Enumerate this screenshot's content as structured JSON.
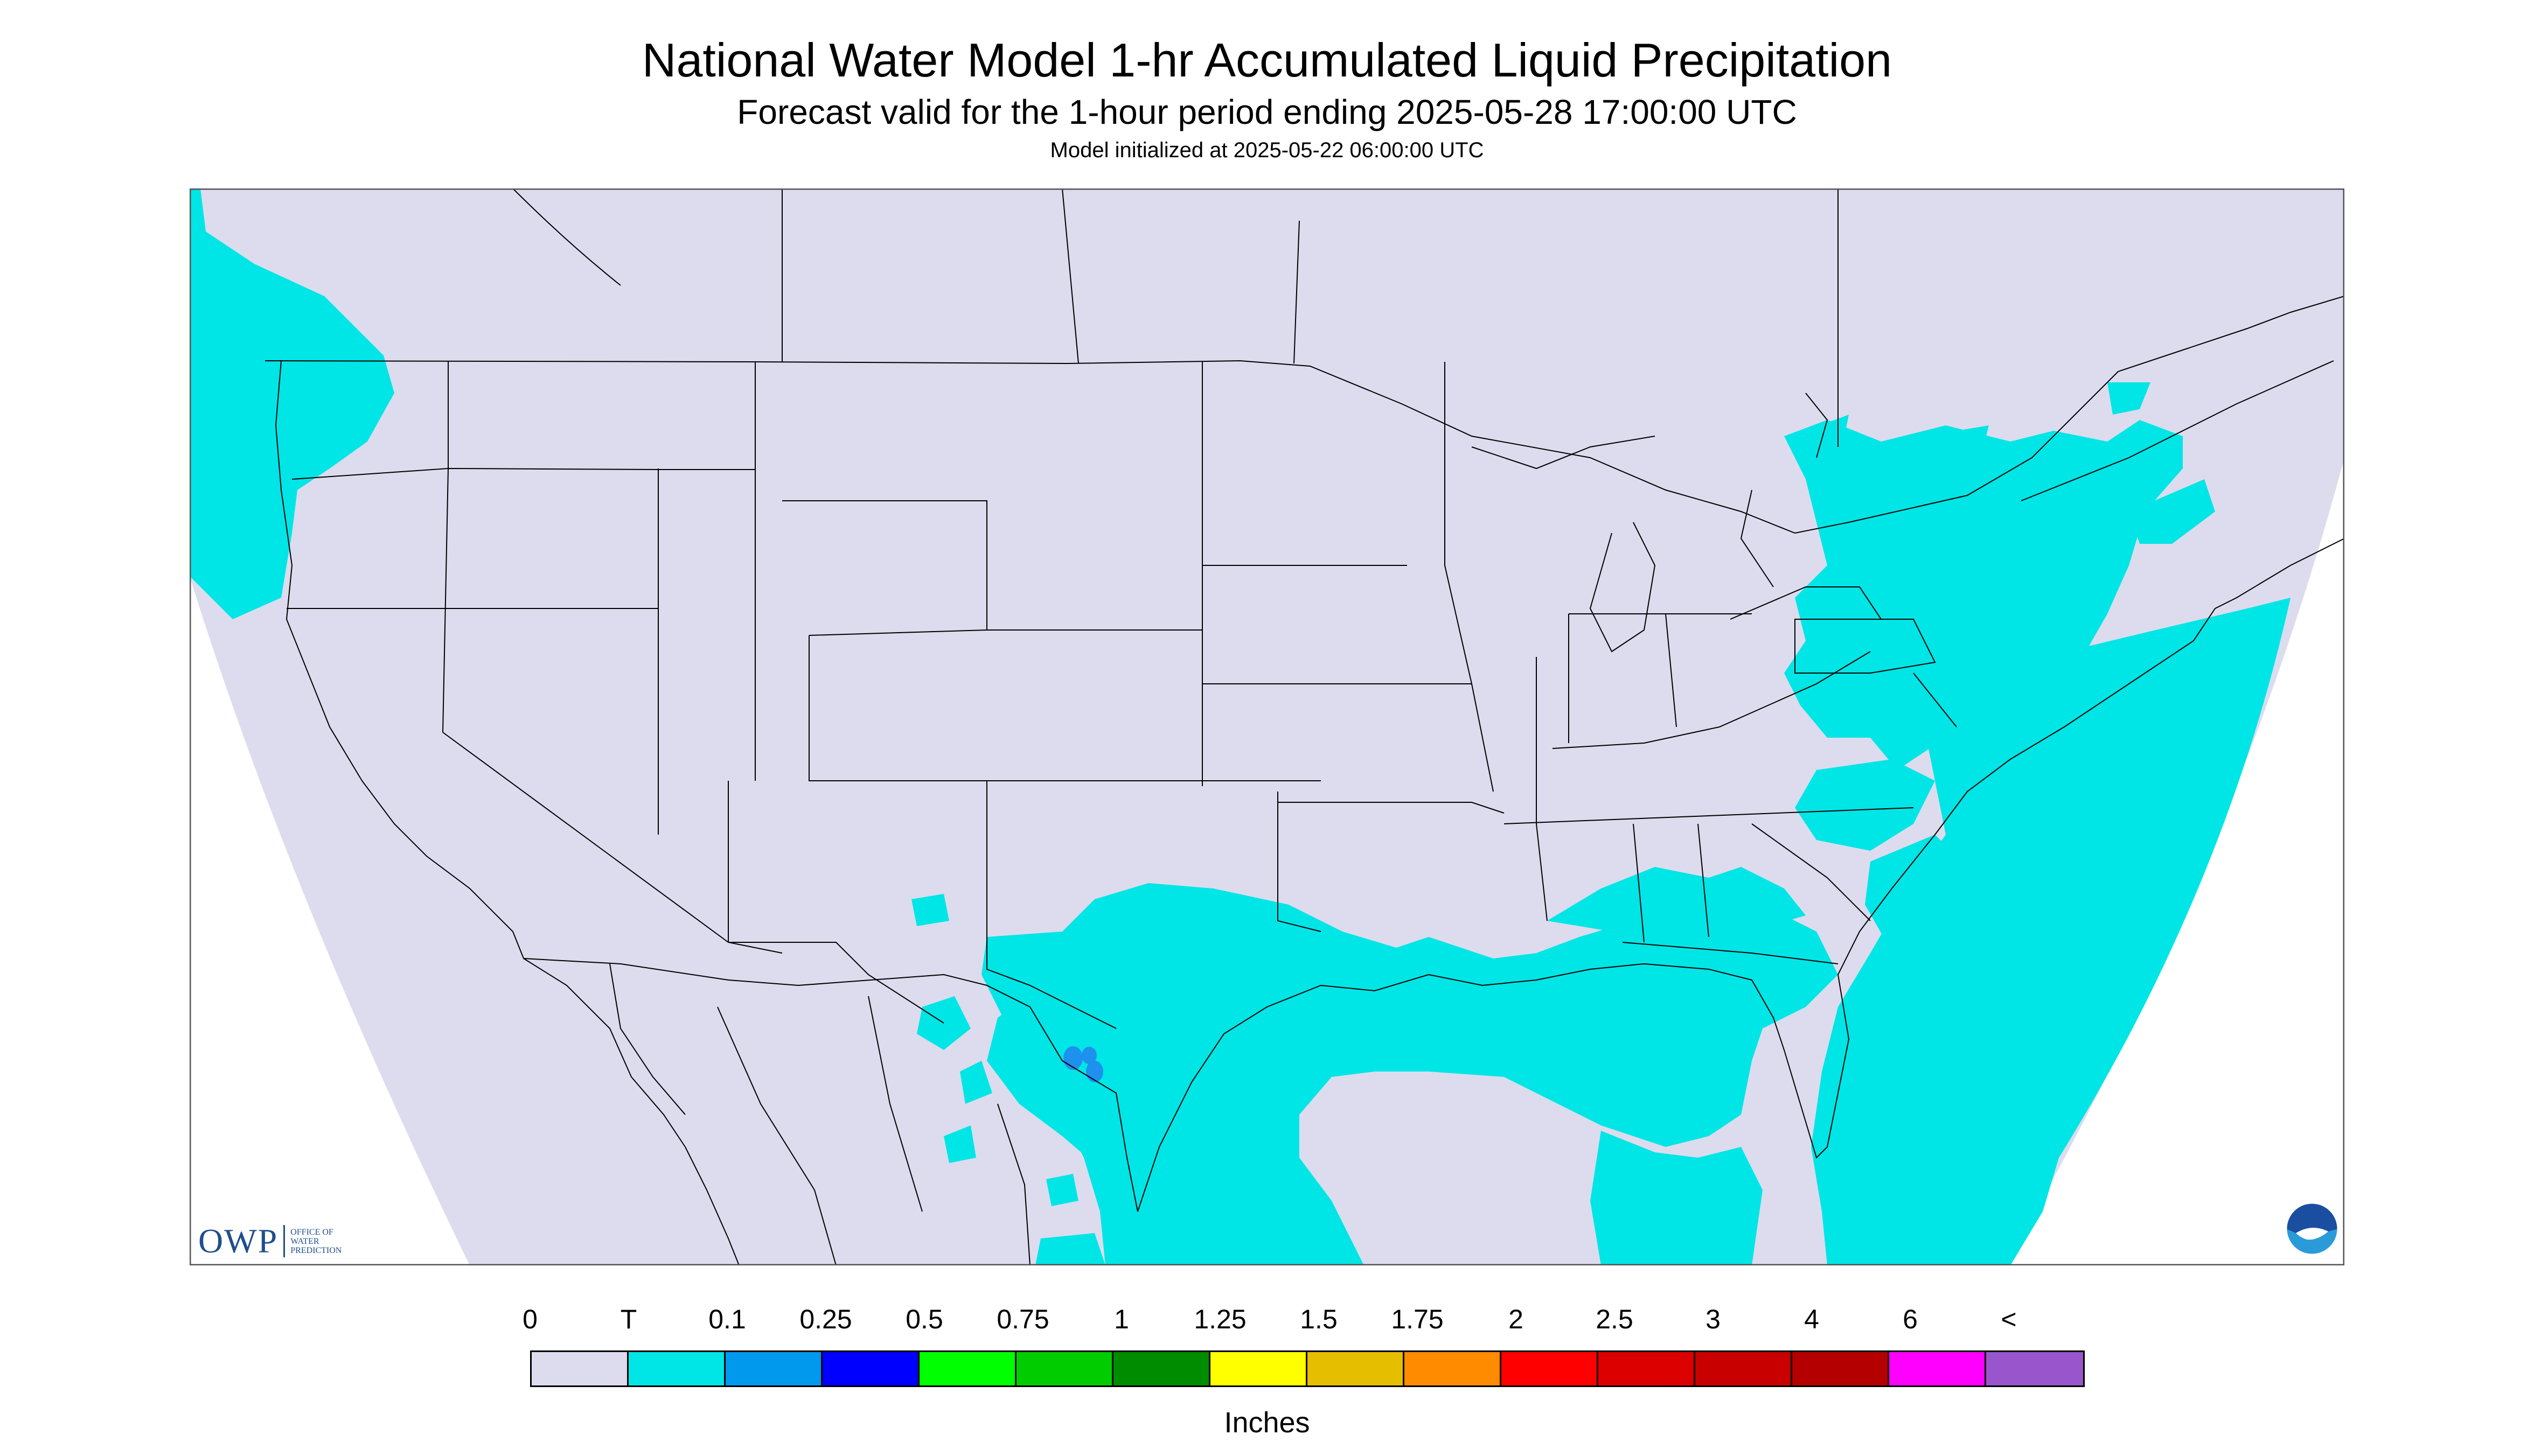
{
  "title": "National Water Model 1-hr Accumulated Liquid Precipitation",
  "subtitle": "Forecast valid for the 1-hour period ending 2025-05-28 17:00:00 UTC",
  "model_init": "Model initialized at 2025-05-22 06:00:00 UTC",
  "colors": {
    "zero": "#dcdcee",
    "trace": "#00e5e5",
    "mid_blue": "#1e90ee",
    "border": "#000000",
    "outside": "#ffffff"
  },
  "legend": {
    "labels": [
      "0",
      "T",
      "0.1",
      "0.25",
      "0.5",
      "0.75",
      "1",
      "1.25",
      "1.5",
      "1.75",
      "2",
      "2.5",
      "3",
      "4",
      "6",
      "<"
    ],
    "colors": [
      "#dcdcee",
      "#00e5e5",
      "#0099ee",
      "#0000ff",
      "#00ff00",
      "#00cc00",
      "#008c00",
      "#ffff00",
      "#e5be00",
      "#ff8c00",
      "#ff0000",
      "#dc0000",
      "#c80000",
      "#b40000",
      "#ff00ff",
      "#9955cc"
    ],
    "units": "Inches"
  },
  "logos": {
    "owp_text": "OWP",
    "owp_sub": "OFFICE OF WATER PREDICTION",
    "noaa_icon": "noaa-logo-icon"
  }
}
